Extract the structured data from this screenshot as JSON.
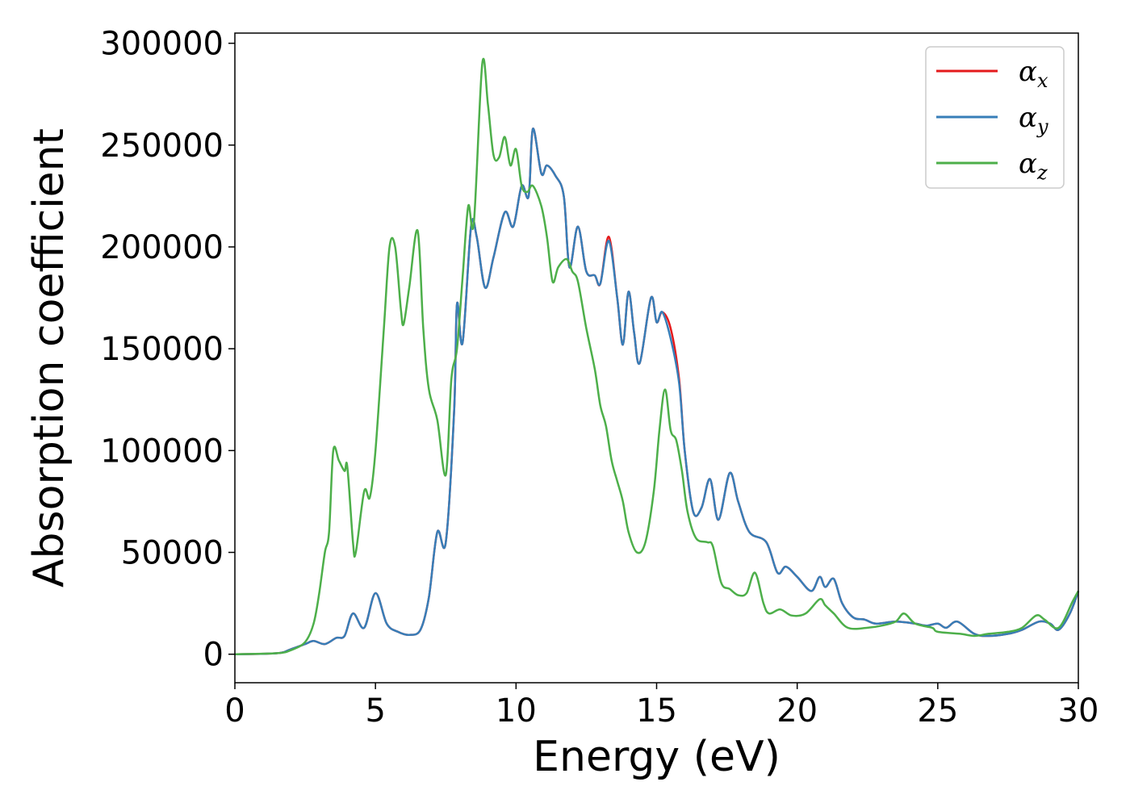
{
  "chart_data": {
    "type": "line",
    "xlabel": "Energy (eV)",
    "ylabel": "Absorption coefficient",
    "xlim": [
      0,
      30
    ],
    "ylim": [
      -14000,
      305000
    ],
    "xticks": [
      0,
      5,
      10,
      15,
      20,
      25,
      30
    ],
    "xtick_labels": [
      "0",
      "5",
      "10",
      "15",
      "20",
      "25",
      "30"
    ],
    "yticks": [
      0,
      50000,
      100000,
      150000,
      200000,
      250000,
      300000
    ],
    "ytick_labels": [
      "0",
      "50000",
      "100000",
      "150000",
      "200000",
      "250000",
      "300000"
    ],
    "grid": false,
    "legend_position": "top-right",
    "series": [
      {
        "name": "α",
        "sub": "x",
        "color": "#e41a1c",
        "points": [
          [
            0,
            0
          ],
          [
            1.5,
            500
          ],
          [
            2.0,
            2500
          ],
          [
            2.5,
            5000
          ],
          [
            2.8,
            6500
          ],
          [
            3.2,
            5000
          ],
          [
            3.6,
            8000
          ],
          [
            3.9,
            9000
          ],
          [
            4.2,
            20000
          ],
          [
            4.6,
            13000
          ],
          [
            5.0,
            30000
          ],
          [
            5.4,
            15000
          ],
          [
            5.8,
            11000
          ],
          [
            6.2,
            9500
          ],
          [
            6.6,
            12000
          ],
          [
            6.9,
            28000
          ],
          [
            7.2,
            60000
          ],
          [
            7.5,
            55000
          ],
          [
            7.8,
            120000
          ],
          [
            7.9,
            172000
          ],
          [
            8.1,
            153000
          ],
          [
            8.4,
            210000
          ],
          [
            8.6,
            205000
          ],
          [
            8.9,
            180000
          ],
          [
            9.2,
            195000
          ],
          [
            9.6,
            217000
          ],
          [
            9.9,
            210000
          ],
          [
            10.2,
            230000
          ],
          [
            10.45,
            225000
          ],
          [
            10.6,
            258000
          ],
          [
            10.9,
            236000
          ],
          [
            11.1,
            240000
          ],
          [
            11.4,
            235000
          ],
          [
            11.7,
            225000
          ],
          [
            11.9,
            190000
          ],
          [
            12.2,
            210000
          ],
          [
            12.5,
            188000
          ],
          [
            12.8,
            186000
          ],
          [
            13.0,
            182000
          ],
          [
            13.3,
            205000
          ],
          [
            13.6,
            175000
          ],
          [
            13.8,
            152000
          ],
          [
            14.0,
            178000
          ],
          [
            14.2,
            158000
          ],
          [
            14.4,
            143000
          ],
          [
            14.8,
            175000
          ],
          [
            15.0,
            163000
          ],
          [
            15.2,
            168000
          ],
          [
            15.5,
            160000
          ],
          [
            15.8,
            135000
          ],
          [
            16.0,
            100000
          ],
          [
            16.3,
            70000
          ],
          [
            16.6,
            72000
          ],
          [
            16.9,
            86000
          ],
          [
            17.2,
            66000
          ],
          [
            17.6,
            89000
          ],
          [
            17.9,
            75000
          ],
          [
            18.3,
            60000
          ],
          [
            18.9,
            55000
          ],
          [
            19.3,
            40000
          ],
          [
            19.6,
            43000
          ],
          [
            20.0,
            38000
          ],
          [
            20.5,
            31000
          ],
          [
            20.8,
            38000
          ],
          [
            21.0,
            33000
          ],
          [
            21.3,
            37000
          ],
          [
            21.6,
            25000
          ],
          [
            22.0,
            18000
          ],
          [
            22.4,
            17000
          ],
          [
            22.8,
            15000
          ],
          [
            23.5,
            16000
          ],
          [
            24.2,
            15000
          ],
          [
            24.6,
            14000
          ],
          [
            25.0,
            15000
          ],
          [
            25.3,
            13000
          ],
          [
            25.7,
            16000
          ],
          [
            26.3,
            10000
          ],
          [
            26.8,
            9000
          ],
          [
            27.5,
            10000
          ],
          [
            28.0,
            12000
          ],
          [
            28.6,
            16000
          ],
          [
            29.0,
            15000
          ],
          [
            29.3,
            12000
          ],
          [
            29.7,
            20000
          ],
          [
            30.0,
            31000
          ]
        ]
      },
      {
        "name": "α",
        "sub": "y",
        "color": "#377eb8",
        "points": [
          [
            0,
            0
          ],
          [
            1.5,
            500
          ],
          [
            2.0,
            2500
          ],
          [
            2.5,
            5000
          ],
          [
            2.8,
            6500
          ],
          [
            3.2,
            5000
          ],
          [
            3.6,
            8000
          ],
          [
            3.9,
            9000
          ],
          [
            4.2,
            20000
          ],
          [
            4.6,
            13000
          ],
          [
            5.0,
            30000
          ],
          [
            5.4,
            15000
          ],
          [
            5.8,
            11000
          ],
          [
            6.2,
            9500
          ],
          [
            6.6,
            12000
          ],
          [
            6.9,
            28000
          ],
          [
            7.2,
            60000
          ],
          [
            7.5,
            55000
          ],
          [
            7.8,
            120000
          ],
          [
            7.9,
            172000
          ],
          [
            8.1,
            153000
          ],
          [
            8.4,
            210000
          ],
          [
            8.6,
            205000
          ],
          [
            8.9,
            180000
          ],
          [
            9.2,
            195000
          ],
          [
            9.6,
            217000
          ],
          [
            9.9,
            210000
          ],
          [
            10.2,
            230000
          ],
          [
            10.45,
            225000
          ],
          [
            10.6,
            258000
          ],
          [
            10.9,
            236000
          ],
          [
            11.1,
            240000
          ],
          [
            11.4,
            235000
          ],
          [
            11.7,
            225000
          ],
          [
            11.9,
            190000
          ],
          [
            12.2,
            210000
          ],
          [
            12.5,
            188000
          ],
          [
            12.8,
            186000
          ],
          [
            13.0,
            182000
          ],
          [
            13.3,
            203000
          ],
          [
            13.6,
            175000
          ],
          [
            13.8,
            152000
          ],
          [
            14.0,
            178000
          ],
          [
            14.2,
            158000
          ],
          [
            14.4,
            143000
          ],
          [
            14.8,
            175000
          ],
          [
            15.0,
            163000
          ],
          [
            15.2,
            168000
          ],
          [
            15.5,
            155000
          ],
          [
            15.8,
            133000
          ],
          [
            16.0,
            100000
          ],
          [
            16.3,
            70000
          ],
          [
            16.6,
            72000
          ],
          [
            16.9,
            86000
          ],
          [
            17.2,
            66000
          ],
          [
            17.6,
            89000
          ],
          [
            17.9,
            75000
          ],
          [
            18.3,
            60000
          ],
          [
            18.9,
            55000
          ],
          [
            19.3,
            40000
          ],
          [
            19.6,
            43000
          ],
          [
            20.0,
            38000
          ],
          [
            20.5,
            31000
          ],
          [
            20.8,
            38000
          ],
          [
            21.0,
            33000
          ],
          [
            21.3,
            37000
          ],
          [
            21.6,
            25000
          ],
          [
            22.0,
            18000
          ],
          [
            22.4,
            17000
          ],
          [
            22.8,
            15000
          ],
          [
            23.5,
            16000
          ],
          [
            24.2,
            15000
          ],
          [
            24.6,
            14000
          ],
          [
            25.0,
            15000
          ],
          [
            25.3,
            13000
          ],
          [
            25.7,
            16000
          ],
          [
            26.3,
            10000
          ],
          [
            26.8,
            9000
          ],
          [
            27.5,
            10000
          ],
          [
            28.0,
            12000
          ],
          [
            28.6,
            16000
          ],
          [
            29.0,
            15000
          ],
          [
            29.3,
            12000
          ],
          [
            29.7,
            20000
          ],
          [
            30.0,
            31000
          ]
        ]
      },
      {
        "name": "α",
        "sub": "z",
        "color": "#4daf4a",
        "points": [
          [
            0,
            0
          ],
          [
            1.5,
            500
          ],
          [
            2.0,
            2000
          ],
          [
            2.5,
            6000
          ],
          [
            2.8,
            15000
          ],
          [
            3.0,
            30000
          ],
          [
            3.2,
            50000
          ],
          [
            3.35,
            60000
          ],
          [
            3.5,
            100000
          ],
          [
            3.7,
            95000
          ],
          [
            3.9,
            90000
          ],
          [
            4.0,
            92000
          ],
          [
            4.2,
            55000
          ],
          [
            4.3,
            50000
          ],
          [
            4.6,
            80000
          ],
          [
            4.8,
            77000
          ],
          [
            5.0,
            100000
          ],
          [
            5.3,
            160000
          ],
          [
            5.5,
            200000
          ],
          [
            5.7,
            200000
          ],
          [
            5.9,
            170000
          ],
          [
            6.0,
            162000
          ],
          [
            6.2,
            180000
          ],
          [
            6.5,
            208000
          ],
          [
            6.7,
            160000
          ],
          [
            6.9,
            130000
          ],
          [
            7.2,
            115000
          ],
          [
            7.5,
            88000
          ],
          [
            7.7,
            135000
          ],
          [
            7.9,
            150000
          ],
          [
            8.1,
            185000
          ],
          [
            8.3,
            220000
          ],
          [
            8.5,
            212000
          ],
          [
            8.8,
            290000
          ],
          [
            9.0,
            270000
          ],
          [
            9.2,
            245000
          ],
          [
            9.4,
            244000
          ],
          [
            9.6,
            254000
          ],
          [
            9.8,
            240000
          ],
          [
            10.0,
            248000
          ],
          [
            10.2,
            230000
          ],
          [
            10.4,
            227000
          ],
          [
            10.6,
            230000
          ],
          [
            10.9,
            220000
          ],
          [
            11.1,
            205000
          ],
          [
            11.3,
            183000
          ],
          [
            11.5,
            190000
          ],
          [
            11.8,
            194000
          ],
          [
            12.0,
            188000
          ],
          [
            12.2,
            183000
          ],
          [
            12.5,
            160000
          ],
          [
            12.8,
            140000
          ],
          [
            13.0,
            122000
          ],
          [
            13.2,
            112000
          ],
          [
            13.4,
            95000
          ],
          [
            13.6,
            85000
          ],
          [
            13.8,
            75000
          ],
          [
            14.0,
            60000
          ],
          [
            14.3,
            50000
          ],
          [
            14.6,
            55000
          ],
          [
            14.9,
            80000
          ],
          [
            15.1,
            110000
          ],
          [
            15.3,
            130000
          ],
          [
            15.5,
            110000
          ],
          [
            15.7,
            105000
          ],
          [
            15.9,
            90000
          ],
          [
            16.1,
            70000
          ],
          [
            16.4,
            57000
          ],
          [
            16.8,
            55000
          ],
          [
            17.0,
            53000
          ],
          [
            17.3,
            35000
          ],
          [
            17.6,
            32000
          ],
          [
            17.9,
            29000
          ],
          [
            18.2,
            30000
          ],
          [
            18.5,
            40000
          ],
          [
            18.8,
            25000
          ],
          [
            19.0,
            20000
          ],
          [
            19.4,
            22000
          ],
          [
            19.8,
            19000
          ],
          [
            20.3,
            20000
          ],
          [
            20.8,
            27000
          ],
          [
            21.0,
            24000
          ],
          [
            21.3,
            20000
          ],
          [
            21.8,
            13000
          ],
          [
            22.5,
            13000
          ],
          [
            23.0,
            14000
          ],
          [
            23.5,
            16000
          ],
          [
            23.8,
            20000
          ],
          [
            24.2,
            15000
          ],
          [
            24.8,
            13000
          ],
          [
            25.0,
            11000
          ],
          [
            25.8,
            10000
          ],
          [
            26.3,
            9000
          ],
          [
            26.8,
            10000
          ],
          [
            27.5,
            11000
          ],
          [
            28.0,
            13000
          ],
          [
            28.5,
            19000
          ],
          [
            28.8,
            17000
          ],
          [
            29.3,
            13000
          ],
          [
            29.8,
            26000
          ],
          [
            30.0,
            31000
          ]
        ]
      }
    ]
  }
}
